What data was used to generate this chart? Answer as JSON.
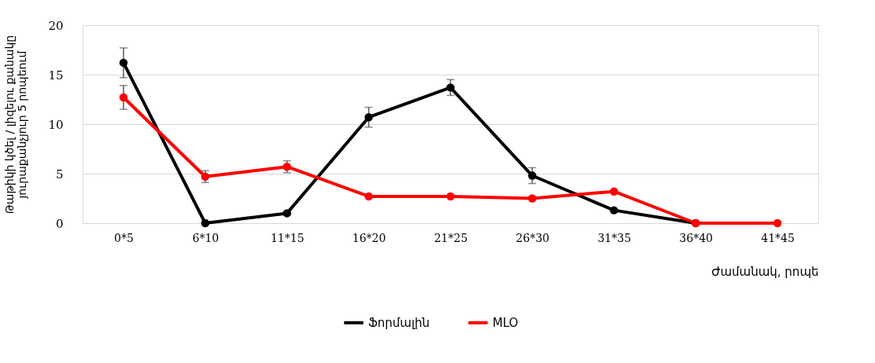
{
  "chart_data": {
    "type": "line",
    "categories": [
      "0*5",
      "6*10",
      "11*15",
      "16*20",
      "21*25",
      "26*30",
      "31*35",
      "36*40",
      "41*45"
    ],
    "series": [
      {
        "name": "Ֆորմալին",
        "color": "#000000",
        "values": [
          16.2,
          0,
          1.0,
          10.7,
          13.7,
          4.8,
          1.3,
          0,
          null
        ],
        "errors": [
          1.5,
          null,
          null,
          1.0,
          0.8,
          0.8,
          null,
          null,
          null
        ]
      },
      {
        "name": "MLO",
        "color": "#ff0000",
        "values": [
          12.7,
          4.7,
          5.7,
          2.7,
          2.7,
          2.5,
          3.2,
          0,
          0
        ],
        "errors": [
          1.2,
          0.6,
          0.6,
          null,
          null,
          null,
          null,
          null,
          null
        ]
      }
    ],
    "xlabel": "Ժամանակ, րոպե",
    "ylabel": "Թաթիկի կծել / լիզելու քանակը\nյուրաքանչյուր 5 րոպեում",
    "ylim": [
      0,
      20
    ],
    "yticks": [
      0,
      5,
      10,
      15,
      20
    ],
    "grid": "y",
    "legend": "bottom",
    "marker": "circle",
    "line_style": "solid"
  }
}
